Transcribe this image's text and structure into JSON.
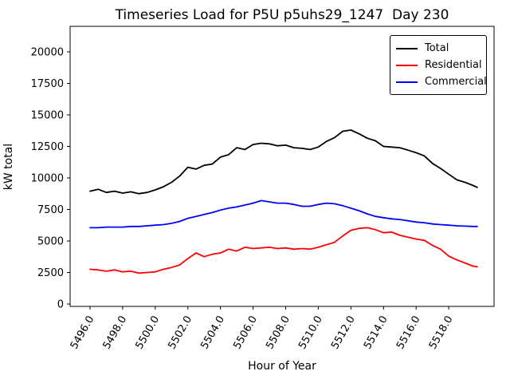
{
  "chart_data": {
    "type": "line",
    "title": "Timeseries Load for P5U p5uhs29_1247  Day 230",
    "xlabel": "Hour of Year",
    "ylabel": "kW total",
    "xlim": [
      5494.78,
      5520.78
    ],
    "ylim": [
      -190,
      22025
    ],
    "grid": false,
    "legend_position": "upper right",
    "tick_label_rotation": 60,
    "xticks": [
      5496,
      5498,
      5500,
      5502,
      5504,
      5506,
      5508,
      5510,
      5512,
      5514,
      5516,
      5518
    ],
    "xtick_labels": [
      "5496.0",
      "5498.0",
      "5500.0",
      "5502.0",
      "5504.0",
      "5506.0",
      "5508.0",
      "5510.0",
      "5512.0",
      "5514.0",
      "5516.0",
      "5518.0"
    ],
    "yticks": [
      0,
      2500,
      5000,
      7500,
      10000,
      12500,
      15000,
      17500,
      20000
    ],
    "ytick_labels": [
      "0",
      "2500",
      "5000",
      "7500",
      "10000",
      "12500",
      "15000",
      "17500",
      "20000"
    ],
    "x": [
      5496.0,
      5496.5,
      5497.0,
      5497.5,
      5498.0,
      5498.5,
      5499.0,
      5499.5,
      5500.0,
      5500.5,
      5501.0,
      5501.5,
      5502.0,
      5502.5,
      5503.0,
      5503.5,
      5504.0,
      5504.5,
      5505.0,
      5505.5,
      5506.0,
      5506.5,
      5507.0,
      5507.5,
      5508.0,
      5508.5,
      5509.0,
      5509.5,
      5510.0,
      5510.5,
      5511.0,
      5511.5,
      5512.0,
      5512.5,
      5513.0,
      5513.5,
      5514.0,
      5514.5,
      5515.0,
      5515.5,
      5516.0,
      5516.5,
      5517.0,
      5517.5,
      5518.0,
      5518.5,
      5519.0,
      5519.5,
      5519.75
    ],
    "series": [
      {
        "name": "Total",
        "color": "#000000",
        "values": [
          8950,
          9100,
          8850,
          8950,
          8800,
          8900,
          8750,
          8850,
          9050,
          9300,
          9650,
          10150,
          10850,
          10700,
          11000,
          11100,
          11650,
          11850,
          12400,
          12250,
          12650,
          12750,
          12700,
          12550,
          12600,
          12400,
          12350,
          12250,
          12450,
          12900,
          13200,
          13700,
          13800,
          13500,
          13150,
          12950,
          12500,
          12450,
          12400,
          12200,
          12000,
          11750,
          11150,
          10750,
          10300,
          9850,
          9650,
          9400,
          9250
        ]
      },
      {
        "name": "Residential",
        "color": "#ff0000",
        "values": [
          2750,
          2700,
          2600,
          2700,
          2550,
          2600,
          2450,
          2500,
          2550,
          2750,
          2900,
          3100,
          3600,
          4050,
          3750,
          3950,
          4050,
          4350,
          4200,
          4500,
          4400,
          4450,
          4500,
          4400,
          4450,
          4350,
          4400,
          4350,
          4500,
          4700,
          4900,
          5400,
          5850,
          6000,
          6050,
          5900,
          5650,
          5700,
          5450,
          5300,
          5150,
          5050,
          4650,
          4350,
          3800,
          3500,
          3250,
          3000,
          2950
        ]
      },
      {
        "name": "Commercial",
        "color": "#0000ff",
        "values": [
          6050,
          6050,
          6100,
          6100,
          6100,
          6150,
          6150,
          6200,
          6250,
          6300,
          6400,
          6550,
          6800,
          6950,
          7100,
          7250,
          7450,
          7600,
          7700,
          7850,
          8000,
          8200,
          8100,
          8000,
          8000,
          7900,
          7750,
          7750,
          7900,
          8000,
          7950,
          7800,
          7600,
          7400,
          7150,
          6950,
          6850,
          6750,
          6700,
          6600,
          6500,
          6450,
          6350,
          6300,
          6250,
          6200,
          6180,
          6150,
          6150
        ]
      }
    ]
  }
}
